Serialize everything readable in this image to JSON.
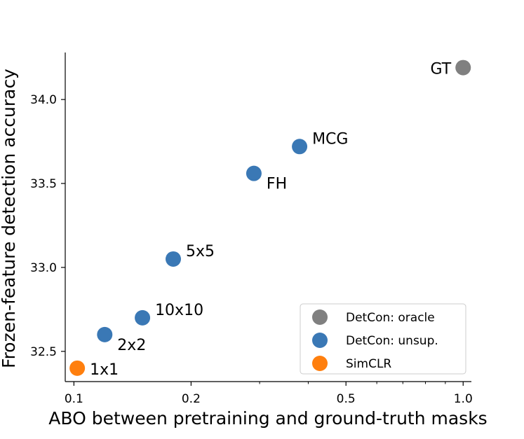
{
  "chart_data": {
    "type": "scatter",
    "title": "",
    "xlabel": "ABO between pretraining and ground-truth masks",
    "ylabel": "Frozen-feature detection accuracy",
    "x_scale": "log",
    "xlim": [
      0.095,
      1.05
    ],
    "ylim": [
      32.32,
      34.28
    ],
    "x_ticks": [
      0.1,
      0.2,
      0.5,
      1.0
    ],
    "x_tick_labels": [
      "0.1",
      "0.2",
      "0.5",
      "1.0"
    ],
    "y_ticks": [
      32.5,
      33.0,
      33.5,
      34.0
    ],
    "y_tick_labels": [
      "32.5",
      "33.0",
      "33.5",
      "34.0"
    ],
    "grid": false,
    "legend_position": "lower-right",
    "series": [
      {
        "name": "DetCon: oracle",
        "color": "#808080",
        "points": [
          {
            "x": 1.0,
            "y": 34.19,
            "label": "GT",
            "label_side": "left"
          }
        ]
      },
      {
        "name": "DetCon: unsup.",
        "color": "#3a78b5",
        "points": [
          {
            "x": 0.38,
            "y": 33.72,
            "label": "MCG",
            "label_side": "upper-right"
          },
          {
            "x": 0.29,
            "y": 33.56,
            "label": "FH",
            "label_side": "lower-right"
          },
          {
            "x": 0.18,
            "y": 33.05,
            "label": "5x5",
            "label_side": "upper-right"
          },
          {
            "x": 0.15,
            "y": 32.7,
            "label": "10x10",
            "label_side": "upper-right"
          },
          {
            "x": 0.12,
            "y": 32.6,
            "label": "2x2",
            "label_side": "lower-right"
          }
        ]
      },
      {
        "name": "SimCLR",
        "color": "#ff7f0e",
        "points": [
          {
            "x": 0.102,
            "y": 32.4,
            "label": "1x1",
            "label_side": "right"
          }
        ]
      }
    ]
  }
}
